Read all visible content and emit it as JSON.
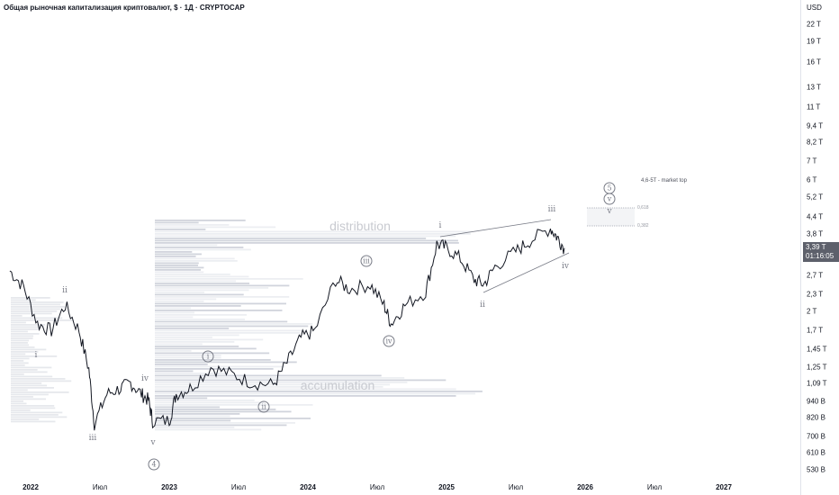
{
  "header": {
    "title": "Общая рыночная капитализация криптовалют, $ · 1Д · CRYPTOCAP"
  },
  "axis": {
    "currency": "USD",
    "labels": [
      {
        "label": "22 T",
        "value": 22000
      },
      {
        "label": "19 T",
        "value": 19000
      },
      {
        "label": "16 T",
        "value": 16000
      },
      {
        "label": "13 T",
        "value": 13000
      },
      {
        "label": "11 T",
        "value": 11000
      },
      {
        "label": "9,4 T",
        "value": 9400
      },
      {
        "label": "8,2 T",
        "value": 8200
      },
      {
        "label": "7 T",
        "value": 7000
      },
      {
        "label": "6 T",
        "value": 6000
      },
      {
        "label": "5,2 T",
        "value": 5200
      },
      {
        "label": "4,4 T",
        "value": 4400
      },
      {
        "label": "3,8 T",
        "value": 3800
      },
      {
        "label": "2,7 T",
        "value": 2700
      },
      {
        "label": "2,3 T",
        "value": 2300
      },
      {
        "label": "2 T",
        "value": 2000
      },
      {
        "label": "1,7 T",
        "value": 1700
      },
      {
        "label": "1,45 T",
        "value": 1450
      },
      {
        "label": "1,25 T",
        "value": 1250
      },
      {
        "label": "1,09 T",
        "value": 1090
      },
      {
        "label": "940 B",
        "value": 940
      },
      {
        "label": "820 B",
        "value": 820
      },
      {
        "label": "700 B",
        "value": 700
      },
      {
        "label": "610 B",
        "value": 610
      },
      {
        "label": "530 B",
        "value": 530
      }
    ],
    "price": "3,39 T",
    "countdown": "01:16:05"
  },
  "time_axis": [
    {
      "label": "2022",
      "t": 2022,
      "year": true
    },
    {
      "label": "Июл",
      "t": 2022.5
    },
    {
      "label": "2023",
      "t": 2023,
      "year": true
    },
    {
      "label": "Июл",
      "t": 2023.5
    },
    {
      "label": "2024",
      "t": 2024,
      "year": true
    },
    {
      "label": "Июл",
      "t": 2024.5
    },
    {
      "label": "2025",
      "t": 2025,
      "year": true
    },
    {
      "label": "Июл",
      "t": 2025.5
    },
    {
      "label": "2026",
      "t": 2026,
      "year": true
    },
    {
      "label": "Июл",
      "t": 2026.5
    },
    {
      "label": "2027",
      "t": 2027,
      "year": true
    }
  ],
  "annotations": {
    "distribution": "distribution",
    "accumulation": "accumulation",
    "target": "4,6-5T - market top",
    "fib_618": "0,618",
    "fib_382": "0,382",
    "waves": [
      "i",
      "ii",
      "iii",
      "iv",
      "v",
      "4",
      "i",
      "ii",
      "iii",
      "iv",
      "i",
      "ii",
      "iii",
      "iv",
      "5",
      "v",
      "v"
    ]
  },
  "chart_data": {
    "type": "line",
    "title": "Общая рыночная капитализация криптовалют",
    "yscale": "log",
    "unit": "B USD",
    "ylim": [
      530,
      22000
    ],
    "xlim": [
      2021.85,
      2027.55
    ],
    "t": [
      2021.85,
      2021.95,
      2022.05,
      2022.15,
      2022.25,
      2022.35,
      2022.42,
      2022.46,
      2022.55,
      2022.65,
      2022.72,
      2022.8,
      2022.85,
      2022.88,
      2023.0,
      2023.05,
      2023.15,
      2023.3,
      2023.45,
      2023.6,
      2023.75,
      2023.85,
      2023.95,
      2024.05,
      2024.2,
      2024.3,
      2024.45,
      2024.55,
      2024.6,
      2024.7,
      2024.85,
      2024.93,
      2025.0,
      2025.1,
      2025.2,
      2025.27,
      2025.35,
      2025.5,
      2025.6,
      2025.75,
      2025.8,
      2025.85
    ],
    "values": [
      2800,
      2450,
      1800,
      1700,
      2100,
      1700,
      1230,
      780,
      1000,
      1050,
      1100,
      1000,
      950,
      800,
      800,
      1000,
      1050,
      1250,
      1180,
      1100,
      1080,
      1300,
      1600,
      1700,
      2600,
      2400,
      2500,
      2100,
      1800,
      2100,
      2350,
      3500,
      3400,
      3100,
      2600,
      2500,
      2900,
      3300,
      3600,
      4000,
      3700,
      3390
    ]
  }
}
